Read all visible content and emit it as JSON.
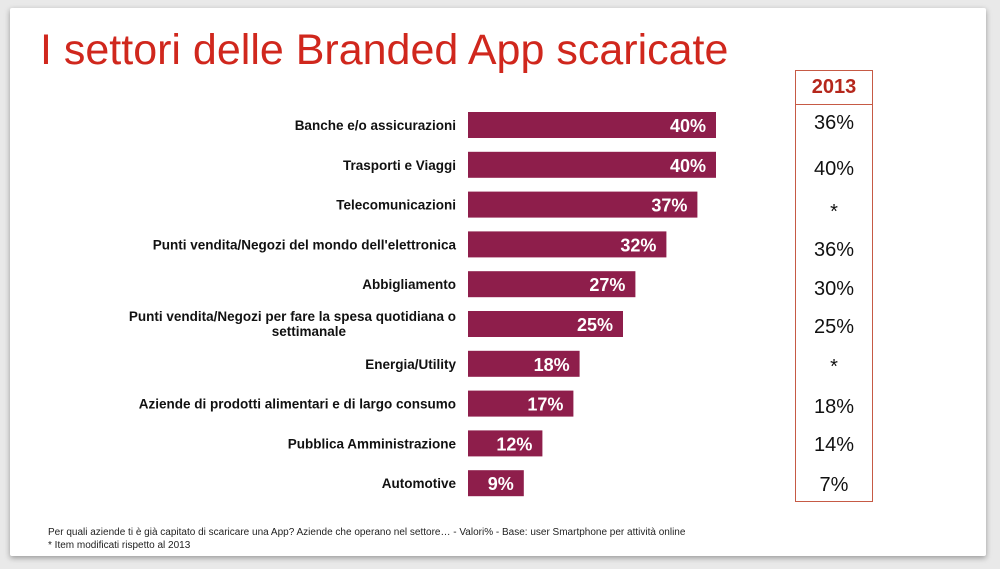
{
  "title": "I settori delle Branded App scaricate",
  "chart_data": {
    "type": "bar",
    "orientation": "horizontal",
    "categories": [
      "Banche e/o assicurazioni",
      "Trasporti e Viaggi",
      "Telecomunicazioni",
      "Punti vendita/Negozi del mondo dell'elettronica",
      "Abbigliamento",
      "Punti vendita/Negozi per fare la spesa quotidiana o settimanale",
      "Energia/Utility",
      "Aziende di prodotti alimentari e di largo consumo",
      "Pubblica Amministrazione",
      "Automotive"
    ],
    "values": [
      40,
      40,
      37,
      32,
      27,
      25,
      18,
      17,
      12,
      9
    ],
    "data_labels": [
      "40%",
      "40%",
      "37%",
      "32%",
      "27%",
      "25%",
      "18%",
      "17%",
      "12%",
      "9%"
    ],
    "bar_color": "#8e1e4b",
    "xlim": [
      0,
      42
    ]
  },
  "comparison": {
    "header": "2013",
    "values": [
      "36%",
      "40%",
      "*",
      "36%",
      "30%",
      "25%",
      "*",
      "18%",
      "14%",
      "7%"
    ]
  },
  "footnotes": [
    "Per quali aziende ti è già capitato di scaricare una App? Aziende che operano nel settore… - Valori% - Base: user Smartphone per attività online",
    "* Item modificati rispetto al 2013"
  ]
}
